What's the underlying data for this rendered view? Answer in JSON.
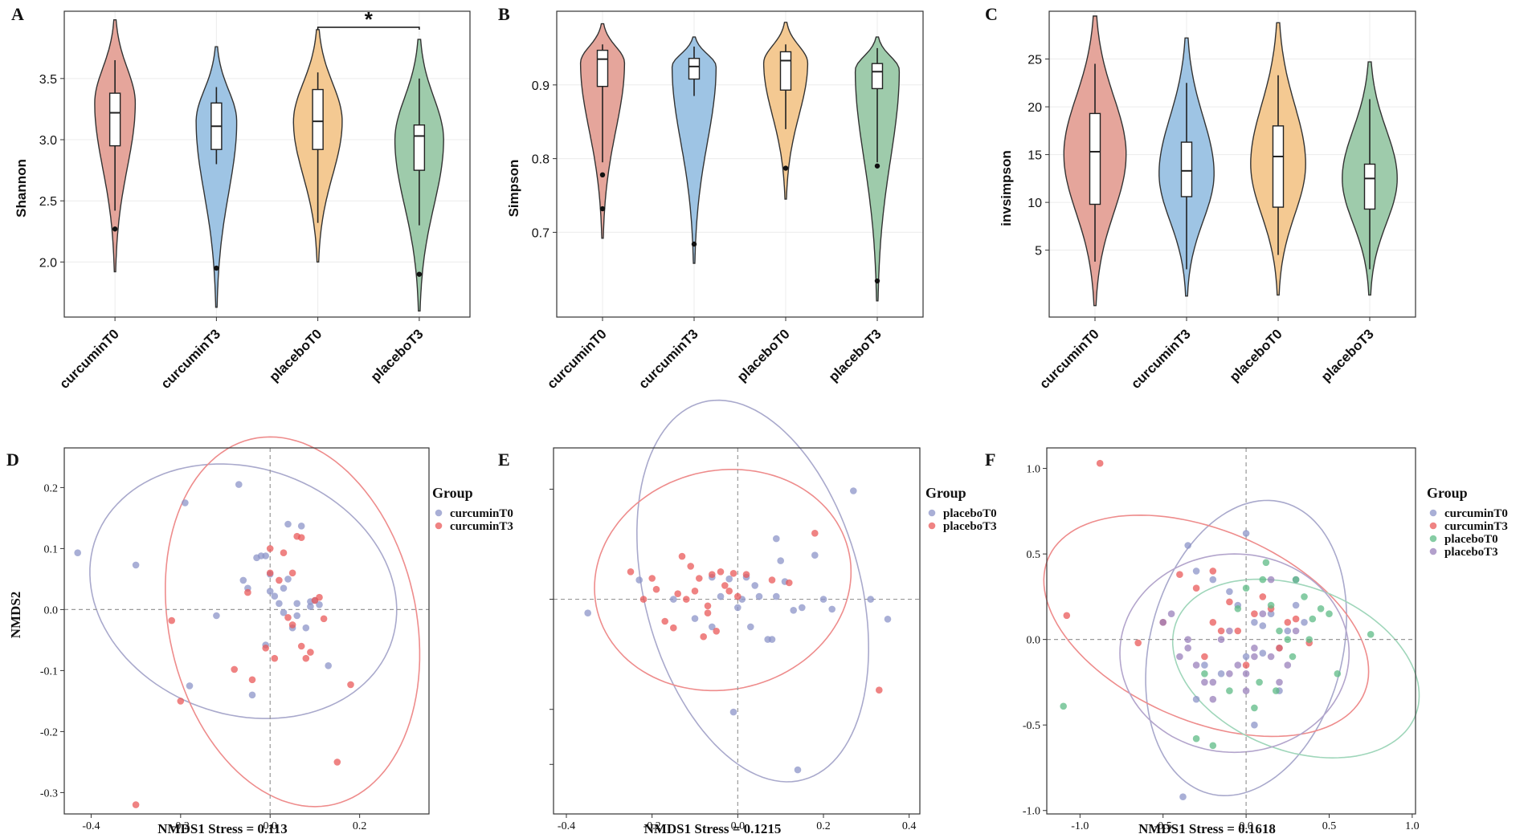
{
  "colors": {
    "curcuminT0_violin": "#e5a59b",
    "curcuminT3_violin": "#9ec4e4",
    "placeboT0_violin": "#f4c992",
    "placeboT3_violin": "#9ecbab",
    "pt_blue": "#8c94c8",
    "pt_red": "#ea5a5a",
    "pt_green": "#5dbb85",
    "pt_purple": "#9a80bb",
    "ell_blue": "#a9a9cc",
    "ell_red": "#ee8c8c",
    "ell_green": "#9fd6ba",
    "ell_purple": "#b3a5cc"
  },
  "chart_data": [
    {
      "panel": "A",
      "type": "violin",
      "ylabel": "Shannon",
      "categories": [
        "curcuminT0",
        "curcuminT3",
        "placeboT0",
        "placeboT3"
      ],
      "ylim": [
        1.55,
        4.05
      ],
      "yticks": [
        "2.0",
        "2.5",
        "3.0",
        "3.5"
      ],
      "groups": [
        {
          "name": "curcuminT0",
          "min": 1.92,
          "max": 3.98,
          "q1": 2.95,
          "median": 3.22,
          "q3": 3.38,
          "whisker_low": 2.42,
          "whisker_high": 3.65,
          "outliers": [
            2.27
          ],
          "peak": 3.3,
          "width": 0.2
        },
        {
          "name": "curcuminT3",
          "min": 1.63,
          "max": 3.76,
          "q1": 2.92,
          "median": 3.11,
          "q3": 3.3,
          "whisker_low": 2.8,
          "whisker_high": 3.43,
          "outliers": [
            1.95
          ],
          "peak": 3.15,
          "width": 0.2
        },
        {
          "name": "placeboT0",
          "min": 2.0,
          "max": 3.9,
          "q1": 2.92,
          "median": 3.15,
          "q3": 3.41,
          "whisker_low": 2.32,
          "whisker_high": 3.55,
          "outliers": [],
          "peak": 3.15,
          "width": 0.24
        },
        {
          "name": "placeboT3",
          "min": 1.6,
          "max": 3.82,
          "q1": 2.75,
          "median": 3.03,
          "q3": 3.12,
          "whisker_low": 2.3,
          "whisker_high": 3.5,
          "outliers": [
            1.9
          ],
          "peak": 3.0,
          "width": 0.24
        }
      ],
      "significance": {
        "from": "placeboT0",
        "to": "placeboT3",
        "label": "*"
      }
    },
    {
      "panel": "B",
      "type": "violin",
      "ylabel": "Simpson",
      "categories": [
        "curcuminT0",
        "curcuminT3",
        "placeboT0",
        "placeboT3"
      ],
      "ylim": [
        0.585,
        1.0
      ],
      "yticks": [
        "0.7",
        "0.8",
        "0.9"
      ],
      "groups": [
        {
          "name": "curcuminT0",
          "min": 0.692,
          "max": 0.983,
          "q1": 0.898,
          "median": 0.935,
          "q3": 0.947,
          "whisker_low": 0.795,
          "whisker_high": 0.955,
          "outliers": [
            0.778,
            0.732
          ],
          "peak": 0.93,
          "width": 0.24
        },
        {
          "name": "curcuminT3",
          "min": 0.658,
          "max": 0.965,
          "q1": 0.908,
          "median": 0.925,
          "q3": 0.936,
          "whisker_low": 0.885,
          "whisker_high": 0.952,
          "outliers": [
            0.684
          ],
          "peak": 0.925,
          "width": 0.24
        },
        {
          "name": "placeboT0",
          "min": 0.745,
          "max": 0.985,
          "q1": 0.893,
          "median": 0.933,
          "q3": 0.945,
          "whisker_low": 0.84,
          "whisker_high": 0.955,
          "outliers": [
            0.787
          ],
          "peak": 0.93,
          "width": 0.24
        },
        {
          "name": "placeboT3",
          "min": 0.607,
          "max": 0.965,
          "q1": 0.895,
          "median": 0.918,
          "q3": 0.929,
          "whisker_low": 0.795,
          "whisker_high": 0.95,
          "outliers": [
            0.79,
            0.634
          ],
          "peak": 0.92,
          "width": 0.24
        }
      ]
    },
    {
      "panel": "C",
      "type": "violin",
      "ylabel": "invsimpson",
      "categories": [
        "curcuminT0",
        "curcuminT3",
        "placeboT0",
        "placeboT3"
      ],
      "ylim": [
        -2,
        30
      ],
      "yticks": [
        "5",
        "10",
        "15",
        "20",
        "25"
      ],
      "groups": [
        {
          "name": "curcuminT0",
          "min": -0.8,
          "max": 29.5,
          "q1": 9.8,
          "median": 15.3,
          "q3": 19.3,
          "whisker_low": 3.8,
          "whisker_high": 24.5,
          "outliers": [],
          "peak": 15,
          "width": 0.34
        },
        {
          "name": "curcuminT3",
          "min": 0.2,
          "max": 27.2,
          "q1": 10.6,
          "median": 13.3,
          "q3": 16.3,
          "whisker_low": 3.0,
          "whisker_high": 22.5,
          "outliers": [],
          "peak": 13,
          "width": 0.3
        },
        {
          "name": "placeboT0",
          "min": 0.3,
          "max": 28.8,
          "q1": 9.5,
          "median": 14.8,
          "q3": 18.0,
          "whisker_low": 4.5,
          "whisker_high": 23.3,
          "outliers": [],
          "peak": 14,
          "width": 0.3
        },
        {
          "name": "placeboT3",
          "min": 0.3,
          "max": 24.7,
          "q1": 9.3,
          "median": 12.5,
          "q3": 14.0,
          "whisker_low": 3.0,
          "whisker_high": 20.8,
          "outliers": [],
          "peak": 12.5,
          "width": 0.3
        }
      ]
    },
    {
      "panel": "D",
      "type": "scatter",
      "xlabel": "NMDS1  Stress = 0.113",
      "ylabel": "NMDS2",
      "xlim": [
        -0.46,
        0.355
      ],
      "ylim": [
        -0.335,
        0.265
      ],
      "xticks": [
        "-0.4",
        "-0.2",
        "0.0",
        "0.2"
      ],
      "yticks": [
        "-0.3",
        "-0.2",
        "-0.1",
        "0.0",
        "0.1",
        "0.2"
      ],
      "legend_title": "Group",
      "series": [
        {
          "name": "curcuminT0",
          "color_key": "pt_blue",
          "ellipse_color_key": "ell_blue",
          "ellipse": {
            "cx": -0.06,
            "cy": 0.03,
            "rx": 0.345,
            "ry": 0.205,
            "angle": -8
          },
          "x": [
            -0.43,
            -0.3,
            -0.19,
            -0.12,
            -0.18,
            -0.07,
            -0.06,
            -0.04,
            -0.03,
            -0.02,
            -0.01,
            0.0,
            0.0,
            0.01,
            0.02,
            0.03,
            0.03,
            0.04,
            0.05,
            0.06,
            0.07,
            0.08,
            0.09,
            0.1,
            0.11,
            0.13,
            -0.05,
            -0.01,
            0.04,
            0.06,
            0.09
          ],
          "y": [
            0.093,
            0.073,
            0.175,
            -0.01,
            -0.125,
            0.205,
            0.048,
            -0.14,
            0.085,
            0.088,
            -0.058,
            0.058,
            0.03,
            0.022,
            0.01,
            -0.005,
            0.035,
            0.14,
            -0.03,
            0.01,
            0.137,
            -0.03,
            0.013,
            0.015,
            0.008,
            -0.092,
            0.035,
            0.088,
            0.05,
            -0.01,
            0.005
          ]
        },
        {
          "name": "curcuminT3",
          "color_key": "pt_red",
          "ellipse_color_key": "ell_red",
          "ellipse": {
            "cx": 0.05,
            "cy": -0.02,
            "rx": 0.265,
            "ry": 0.32,
            "angle": 35
          },
          "x": [
            -0.3,
            -0.22,
            -0.2,
            -0.08,
            -0.04,
            -0.05,
            -0.01,
            0.0,
            0.01,
            0.02,
            0.03,
            0.04,
            0.05,
            0.06,
            0.07,
            0.08,
            0.09,
            0.1,
            0.11,
            0.12,
            0.15,
            0.18,
            0.05,
            0.07,
            0.0
          ],
          "y": [
            -0.32,
            -0.018,
            -0.15,
            -0.098,
            -0.115,
            0.028,
            -0.063,
            0.1,
            -0.08,
            0.048,
            0.093,
            -0.013,
            -0.025,
            0.12,
            0.118,
            -0.08,
            -0.07,
            0.015,
            0.02,
            -0.015,
            -0.25,
            -0.123,
            0.06,
            -0.06,
            0.06
          ]
        }
      ]
    },
    {
      "panel": "E",
      "type": "scatter",
      "xlabel": "NMDS1  Stress = 0.1215",
      "ylabel": "",
      "xlim": [
        -0.43,
        0.425
      ],
      "ylim": [
        -0.39,
        0.275
      ],
      "xticks": [
        "-0.4",
        "-0.2",
        "0.0",
        "0.2",
        "0.4"
      ],
      "yticks": [
        "",
        "",
        "",
        ""
      ],
      "legend_title": "Group",
      "series": [
        {
          "name": "placeboT0",
          "color_key": "pt_blue",
          "ellipse_color_key": "ell_blue",
          "ellipse": {
            "cx": 0.035,
            "cy": 0.015,
            "rx": 0.365,
            "ry": 0.245,
            "angle": -65
          },
          "x": [
            -0.35,
            -0.23,
            -0.15,
            -0.1,
            -0.06,
            -0.04,
            -0.02,
            0.0,
            0.02,
            0.03,
            0.04,
            0.05,
            0.07,
            0.08,
            0.09,
            0.1,
            0.11,
            0.13,
            0.15,
            0.18,
            0.2,
            0.22,
            0.27,
            0.31,
            0.35,
            -0.01,
            0.01,
            0.14,
            -0.06,
            0.09
          ],
          "y": [
            -0.025,
            0.035,
            0.0,
            -0.035,
            -0.05,
            0.005,
            0.037,
            -0.015,
            0.04,
            -0.05,
            0.025,
            0.005,
            -0.073,
            -0.073,
            0.11,
            0.07,
            0.032,
            -0.02,
            -0.015,
            0.08,
            0.0,
            -0.018,
            0.197,
            0.0,
            -0.036,
            -0.205,
            0.0,
            -0.31,
            0.04,
            0.005
          ]
        },
        {
          "name": "placeboT3",
          "color_key": "pt_red",
          "ellipse_color_key": "ell_red",
          "ellipse": {
            "cx": -0.035,
            "cy": 0.035,
            "rx": 0.3,
            "ry": 0.2,
            "angle": 5
          },
          "x": [
            -0.25,
            -0.22,
            -0.2,
            -0.19,
            -0.17,
            -0.15,
            -0.13,
            -0.12,
            -0.11,
            -0.1,
            -0.09,
            -0.08,
            -0.07,
            -0.06,
            -0.05,
            -0.04,
            -0.03,
            -0.02,
            -0.01,
            0.0,
            0.02,
            0.08,
            0.12,
            0.18,
            0.33,
            -0.14,
            -0.07
          ],
          "y": [
            0.05,
            0.0,
            0.038,
            0.018,
            -0.04,
            -0.052,
            0.078,
            0.0,
            0.06,
            0.015,
            0.038,
            -0.068,
            -0.025,
            0.045,
            -0.058,
            0.05,
            0.025,
            0.015,
            0.047,
            0.005,
            0.045,
            0.035,
            0.03,
            0.12,
            -0.165,
            0.01,
            -0.012
          ]
        }
      ]
    },
    {
      "panel": "F",
      "type": "scatter",
      "xlabel": "NMDS1  Stress = 0.1618",
      "ylabel": "",
      "xlim": [
        -1.2,
        1.02
      ],
      "ylim": [
        -1.02,
        1.12
      ],
      "xticks": [
        "-1.0",
        "-0.5",
        "0.0",
        "0.5",
        "1.0"
      ],
      "yticks": [
        "-1.0",
        "-0.5",
        "0.0",
        "0.5",
        "1.0"
      ],
      "legend_title": "Group",
      "series": [
        {
          "name": "curcuminT0",
          "color_key": "pt_blue",
          "ellipse_color_key": "ell_blue",
          "ellipse": {
            "cx": 0.0,
            "cy": -0.05,
            "rx": 0.88,
            "ry": 0.58,
            "angle": 75
          },
          "x": [
            -0.35,
            -0.3,
            -0.2,
            -0.1,
            -0.05,
            0.0,
            0.05,
            0.1,
            0.15,
            0.2,
            0.25,
            0.3,
            0.35,
            -0.25,
            -0.15,
            0.0,
            0.1,
            0.2,
            -0.38,
            0.05,
            -0.3,
            0.3
          ],
          "y": [
            0.55,
            0.4,
            0.35,
            0.28,
            0.2,
            0.62,
            0.1,
            0.08,
            0.15,
            -0.05,
            0.05,
            0.2,
            0.1,
            -0.15,
            -0.2,
            -0.1,
            -0.08,
            -0.3,
            -0.92,
            -0.5,
            -0.35,
            0.35
          ]
        },
        {
          "name": "curcuminT3",
          "color_key": "pt_red",
          "ellipse_color_key": "ell_red",
          "ellipse": {
            "cx": -0.24,
            "cy": 0.08,
            "rx": 1.03,
            "ry": 0.56,
            "angle": -22
          },
          "x": [
            -1.08,
            -0.88,
            -0.65,
            -0.5,
            -0.4,
            -0.3,
            -0.2,
            -0.1,
            -0.05,
            0.0,
            0.05,
            0.1,
            0.15,
            0.2,
            0.25,
            0.3,
            0.38,
            -0.2,
            -0.15,
            -0.25
          ],
          "y": [
            0.14,
            1.03,
            -0.02,
            0.1,
            0.38,
            0.3,
            0.4,
            0.22,
            0.05,
            -0.15,
            0.15,
            0.25,
            0.18,
            -0.05,
            0.1,
            0.12,
            -0.02,
            0.1,
            0.05,
            -0.1
          ]
        },
        {
          "name": "placeboT0",
          "color_key": "pt_green",
          "ellipse_color_key": "ell_green",
          "ellipse": {
            "cx": 0.3,
            "cy": -0.17,
            "rx": 0.77,
            "ry": 0.48,
            "angle": -20
          },
          "x": [
            -1.1,
            -0.3,
            -0.2,
            -0.1,
            0.0,
            0.05,
            0.1,
            0.15,
            0.2,
            0.25,
            0.3,
            0.35,
            0.4,
            0.45,
            0.5,
            0.55,
            0.75,
            -0.25,
            0.08,
            0.18,
            0.28,
            0.12,
            -0.05,
            0.38
          ],
          "y": [
            -0.39,
            -0.58,
            -0.62,
            -0.3,
            0.3,
            -0.4,
            0.35,
            0.2,
            0.05,
            0.0,
            0.35,
            0.25,
            0.12,
            0.18,
            0.15,
            -0.2,
            0.03,
            -0.2,
            -0.25,
            -0.3,
            -0.1,
            0.45,
            0.18,
            0.0
          ]
        },
        {
          "name": "placeboT3",
          "color_key": "pt_purple",
          "ellipse_color_key": "ell_purple",
          "ellipse": {
            "cx": -0.07,
            "cy": -0.08,
            "rx": 0.69,
            "ry": 0.58,
            "angle": 0
          },
          "x": [
            -0.5,
            -0.45,
            -0.4,
            -0.35,
            -0.3,
            -0.25,
            -0.2,
            -0.15,
            -0.1,
            -0.05,
            0.0,
            0.05,
            0.1,
            0.15,
            0.2,
            0.25,
            0.3,
            -0.2,
            -0.1,
            0.0,
            -0.35,
            0.05,
            0.15
          ],
          "y": [
            0.1,
            0.15,
            -0.1,
            0.0,
            -0.15,
            -0.25,
            -0.35,
            0.0,
            -0.2,
            -0.15,
            -0.3,
            -0.05,
            0.15,
            -0.1,
            -0.25,
            -0.15,
            0.05,
            -0.25,
            0.05,
            -0.2,
            -0.05,
            -0.1,
            0.35
          ]
        }
      ]
    }
  ]
}
